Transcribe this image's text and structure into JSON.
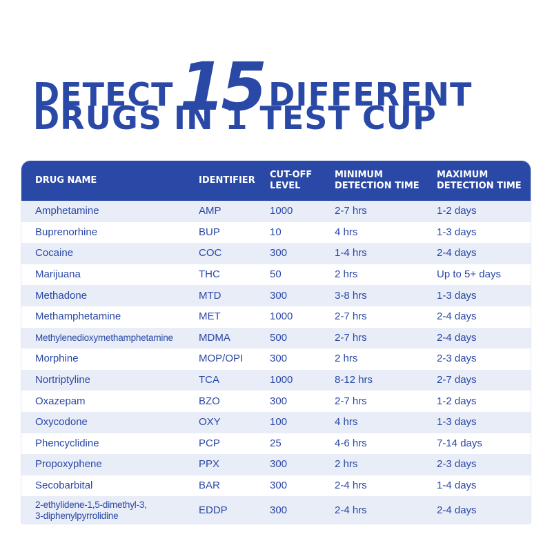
{
  "header": {
    "line1": {
      "before": "DETECT",
      "number": "15",
      "after": "DIFFERENT"
    },
    "line2": "DRUGS IN 1 TEST CUP"
  },
  "table": {
    "columns": [
      "DRUG NAME",
      "IDENTIFIER",
      "CUT-OFF\nLEVEL",
      "MINIMUM\nDETECTION TIME",
      "MAXIMUM\nDETECTION TIME"
    ],
    "rows": [
      [
        "Amphetamine",
        "AMP",
        "1000",
        "2-7 hrs",
        "1-2 days"
      ],
      [
        "Buprenorhine",
        "BUP",
        "10",
        "4 hrs",
        "1-3 days"
      ],
      [
        "Cocaine",
        "COC",
        "300",
        "1-4 hrs",
        "2-4 days"
      ],
      [
        "Marijuana",
        "THC",
        "50",
        "2 hrs",
        "Up to 5+ days"
      ],
      [
        "Methadone",
        "MTD",
        "300",
        "3-8 hrs",
        "1-3 days"
      ],
      [
        "Methamphetamine",
        "MET",
        "1000",
        "2-7 hrs",
        "2-4 days"
      ],
      [
        "Methylenedioxymethamphetamine",
        "MDMA",
        "500",
        "2-7 hrs",
        "2-4 days"
      ],
      [
        "Morphine",
        "MOP/OPI",
        "300",
        "2 hrs",
        "2-3 days"
      ],
      [
        "Nortriptyline",
        "TCA",
        "1000",
        "8-12 hrs",
        "2-7 days"
      ],
      [
        "Oxazepam",
        "BZO",
        "300",
        "2-7 hrs",
        "1-2 days"
      ],
      [
        "Oxycodone",
        "OXY",
        "100",
        "4 hrs",
        "1-3 days"
      ],
      [
        "Phencyclidine",
        "PCP",
        "25",
        "4-6 hrs",
        "7-14 days"
      ],
      [
        "Propoxyphene",
        "PPX",
        "300",
        "2 hrs",
        "2-3 days"
      ],
      [
        "Secobarbital",
        "BAR",
        "300",
        "2-4 hrs",
        "1-4 days"
      ],
      [
        "2-ethylidene-1,5-dimethyl-3,\n3-diphenylpyrrolidine",
        "EDDP",
        "300",
        "2-4 hrs",
        "2-4 days"
      ]
    ]
  }
}
